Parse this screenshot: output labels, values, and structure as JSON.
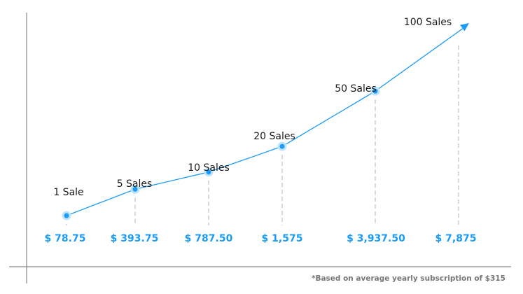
{
  "chart_data": {
    "type": "line",
    "title": "",
    "xlabel": "",
    "ylabel": "",
    "categories": [
      "1 Sale",
      "5 Sales",
      "10 Sales",
      "20 Sales",
      "50 Sales",
      "100 Sales"
    ],
    "values": [
      78.75,
      393.75,
      787.5,
      1575,
      3937.5,
      7875
    ],
    "value_labels": [
      "$ 78.75",
      "$ 393.75",
      "$ 787.50",
      "$ 1,575",
      "$ 3,937.50",
      "$ 7,875"
    ],
    "sales": [
      1,
      5,
      10,
      20,
      50,
      100
    ],
    "last_point_marker": "arrow",
    "grid": false,
    "colors": {
      "line": "#1a9bf5",
      "price": "#1a9bf5",
      "guides": "#d9d9d9",
      "axis": "#888888"
    }
  },
  "footnote": "*Based on average yearly subscription of $315"
}
